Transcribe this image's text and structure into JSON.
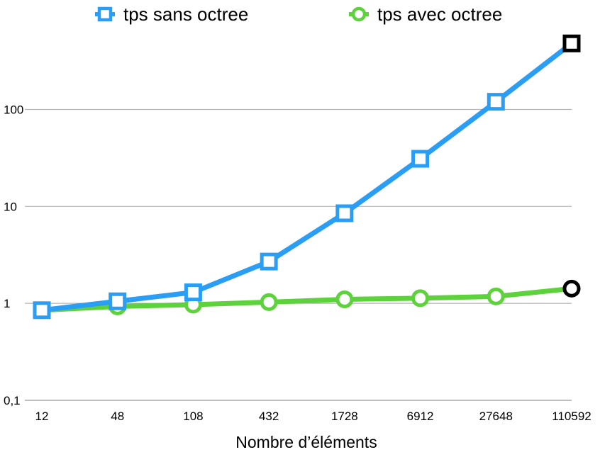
{
  "chart_data": {
    "type": "line",
    "title": "",
    "xlabel": "Nombre d’éléments",
    "ylabel": "",
    "x_scale": "category",
    "y_scale": "log",
    "categories": [
      "12",
      "48",
      "108",
      "432",
      "1728",
      "6912",
      "27648",
      "110592"
    ],
    "ylim": [
      0.1,
      600
    ],
    "yticks": [
      0.1,
      1,
      10,
      100
    ],
    "ytick_labels": [
      "0,1",
      "1",
      "10",
      "100"
    ],
    "grid": true,
    "legend_position": "top",
    "series": [
      {
        "name": "tps sans octree",
        "marker": "square",
        "color": "#2a9df4",
        "values": [
          0.85,
          1.05,
          1.3,
          2.7,
          8.5,
          31,
          120,
          480
        ]
      },
      {
        "name": "tps avec octree",
        "marker": "circle",
        "color": "#5dd23c",
        "values": [
          0.85,
          0.93,
          0.97,
          1.03,
          1.1,
          1.13,
          1.18,
          1.42
        ]
      }
    ],
    "last_point_marker_color": "#000000"
  }
}
